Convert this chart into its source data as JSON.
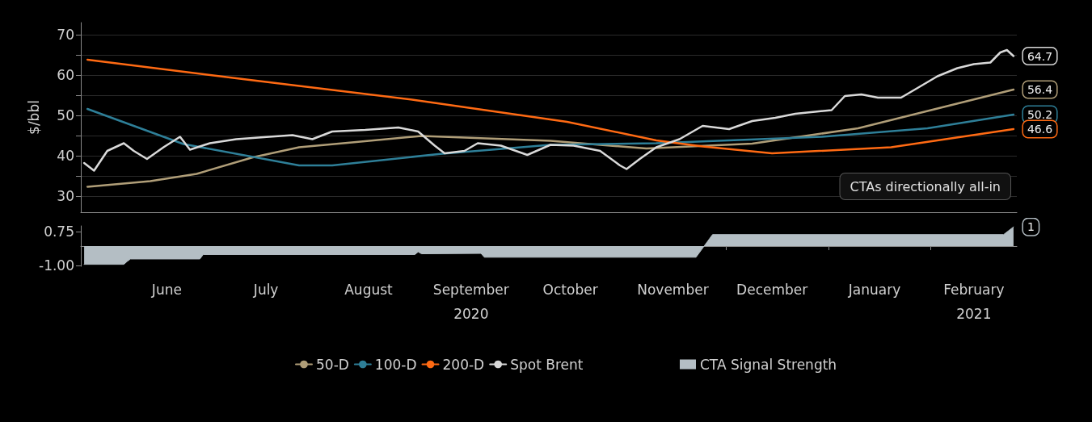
{
  "chart_data": [
    {
      "type": "line",
      "ylabel": "$/bbl",
      "xlim": [
        "2020-05-20",
        "2021-02-27"
      ],
      "ylim": [
        26,
        73
      ],
      "yticks": [
        30,
        {
          "value": 35,
          "label": null
        },
        40,
        {
          "value": 45,
          "label": null
        },
        50,
        {
          "value": 55,
          "label": null
        },
        60,
        {
          "value": 65,
          "label": null
        },
        70
      ],
      "grid": "y",
      "legend": "bottom",
      "tick_labels": "y",
      "annotations": [
        "CTAs directionally all-in"
      ],
      "series": [
        {
          "name": "50-D",
          "color": "#b09e78",
          "x": [
            "2020-05-22",
            "2020-06-10",
            "2020-06-24",
            "2020-07-11",
            "2020-07-25",
            "2020-08-10",
            "2020-08-31",
            "2020-10-09",
            "2020-11-07",
            "2020-12-09",
            "2021-01-10",
            "2021-02-26"
          ],
          "values": [
            32.3,
            33.7,
            35.5,
            39.6,
            42.1,
            43.3,
            44.9,
            43.7,
            41.8,
            43.0,
            46.8,
            56.4
          ],
          "value_labels": [
            null,
            null,
            null,
            null,
            null,
            null,
            null,
            null,
            null,
            null,
            null,
            "56.4"
          ]
        },
        {
          "name": "100-D",
          "color": "#2e7f98",
          "x": [
            "2020-05-22",
            "2020-06-20",
            "2020-07-25",
            "2020-08-04",
            "2020-09-05",
            "2020-10-09",
            "2020-11-10",
            "2020-12-30",
            "2021-01-31",
            "2021-02-26"
          ],
          "values": [
            51.6,
            42.9,
            37.6,
            37.6,
            40.4,
            42.7,
            43.1,
            44.7,
            46.8,
            50.2
          ],
          "value_labels": [
            null,
            null,
            null,
            null,
            null,
            null,
            null,
            null,
            null,
            "50.2"
          ]
        },
        {
          "name": "200-D",
          "color": "#ff6a13",
          "x": [
            "2020-05-22",
            "2020-07-08",
            "2020-08-29",
            "2020-10-14",
            "2020-11-10",
            "2020-11-24",
            "2020-12-15",
            "2021-01-20",
            "2021-02-26"
          ],
          "values": [
            63.8,
            59.0,
            53.8,
            48.4,
            43.8,
            42.3,
            40.6,
            42.1,
            46.6
          ],
          "value_labels": [
            null,
            null,
            null,
            null,
            null,
            null,
            null,
            null,
            "46.6"
          ]
        },
        {
          "name": "Spot Brent",
          "color": "#d9d9d9",
          "x": [
            "2020-05-21",
            "2020-05-24",
            "2020-05-28",
            "2020-06-02",
            "2020-06-05",
            "2020-06-09",
            "2020-06-14",
            "2020-06-19",
            "2020-06-22",
            "2020-06-28",
            "2020-07-06",
            "2020-07-16",
            "2020-07-23",
            "2020-07-29",
            "2020-08-04",
            "2020-08-14",
            "2020-08-24",
            "2020-08-30",
            "2020-09-04",
            "2020-09-07",
            "2020-09-13",
            "2020-09-17",
            "2020-09-24",
            "2020-10-02",
            "2020-10-09",
            "2020-10-16",
            "2020-10-24",
            "2020-10-30",
            "2020-11-01",
            "2020-11-05",
            "2020-11-10",
            "2020-11-17",
            "2020-11-24",
            "2020-12-02",
            "2020-12-09",
            "2020-12-16",
            "2020-12-22",
            "2020-12-28",
            "2021-01-02",
            "2021-01-06",
            "2021-01-11",
            "2021-01-16",
            "2021-01-23",
            "2021-01-28",
            "2021-02-03",
            "2021-02-09",
            "2021-02-14",
            "2021-02-19",
            "2021-02-22",
            "2021-02-24",
            "2021-02-26"
          ],
          "values": [
            38.2,
            36.3,
            41.2,
            43.1,
            41.2,
            39.2,
            42.1,
            44.7,
            41.5,
            43.1,
            44.1,
            44.7,
            45.1,
            44.1,
            46.0,
            46.4,
            47.0,
            46.0,
            42.5,
            40.6,
            41.2,
            43.1,
            42.5,
            40.2,
            42.7,
            42.5,
            41.2,
            37.6,
            36.7,
            39.2,
            42.1,
            44.1,
            47.4,
            46.6,
            48.6,
            49.4,
            50.4,
            50.9,
            51.3,
            54.8,
            55.2,
            54.4,
            54.4,
            56.8,
            59.7,
            61.7,
            62.7,
            63.1,
            65.6,
            66.2,
            64.7
          ],
          "value_labels": [
            null,
            null,
            null,
            null,
            null,
            null,
            null,
            null,
            null,
            null,
            null,
            null,
            null,
            null,
            null,
            null,
            null,
            null,
            null,
            null,
            null,
            null,
            null,
            null,
            null,
            null,
            null,
            null,
            null,
            null,
            null,
            null,
            null,
            null,
            null,
            null,
            null,
            null,
            null,
            null,
            null,
            null,
            null,
            null,
            null,
            null,
            null,
            null,
            null,
            null,
            "64.7"
          ]
        }
      ]
    },
    {
      "type": "area",
      "xlim": [
        "2020-05-20",
        "2021-02-27"
      ],
      "ylim": [
        -1.05,
        1.05
      ],
      "yticks": [
        0.75,
        {
          "value": -1,
          "label": "-1.00"
        }
      ],
      "xticks": [
        {
          "value": "2020-06-01",
          "label": null
        },
        {
          "value": "2020-06-15",
          "label": "June"
        },
        {
          "value": "2020-07-01",
          "label": null
        },
        {
          "value": "2020-07-15",
          "label": "July"
        },
        {
          "value": "2020-08-01",
          "label": null
        },
        {
          "value": "2020-08-15",
          "label": "August"
        },
        {
          "value": "2020-09-01",
          "label": null
        },
        {
          "value": "2020-09-15",
          "label": "September\n2020"
        },
        {
          "value": "2020-10-01",
          "label": null
        },
        {
          "value": "2020-10-15",
          "label": "October"
        },
        {
          "value": "2020-11-01",
          "label": null
        },
        {
          "value": "2020-11-15",
          "label": "November"
        },
        {
          "value": "2020-12-01",
          "label": null
        },
        {
          "value": "2020-12-15",
          "label": "December"
        },
        {
          "value": "2021-01-01",
          "label": null
        },
        {
          "value": "2021-01-15",
          "label": "January"
        },
        {
          "value": "2021-02-01",
          "label": null
        },
        {
          "value": "2021-02-14",
          "label": "February\n2021"
        }
      ],
      "legend": "bottom",
      "series": [
        {
          "name": "CTA Signal Strength",
          "color": "#b4bec4",
          "x": [
            "2020-05-21",
            "2020-06-02",
            "2020-06-03",
            "2020-06-04",
            "2020-06-25",
            "2020-06-26",
            "2020-08-29",
            "2020-08-30",
            "2020-08-31",
            "2020-09-18",
            "2020-09-19",
            "2020-11-22",
            "2020-11-27",
            "2021-02-23",
            "2021-02-26"
          ],
          "values": [
            -0.95,
            -0.95,
            -0.8,
            -0.67,
            -0.67,
            -0.44,
            -0.44,
            -0.3,
            -0.4,
            -0.38,
            -0.58,
            -0.58,
            0.6,
            0.6,
            1
          ],
          "value_labels": [
            null,
            null,
            null,
            null,
            null,
            null,
            null,
            null,
            null,
            null,
            null,
            null,
            null,
            null,
            "1"
          ]
        }
      ]
    }
  ]
}
